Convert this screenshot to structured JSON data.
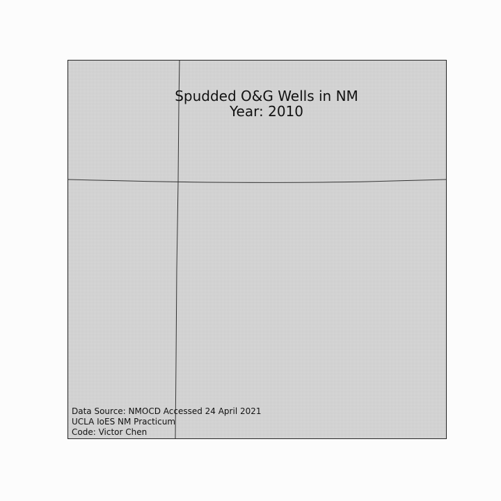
{
  "map": {
    "title_line1": "Spudded O&G Wells in NM",
    "title_line2": "Year: 2010",
    "background_color": "#d3d3d3",
    "line_color": "#333333"
  },
  "credits": {
    "source": "Data Source: NMOCD Accessed 24 April 2021",
    "org": "UCLA IoES NM Practicum",
    "code": "Code: Victor Chen"
  }
}
